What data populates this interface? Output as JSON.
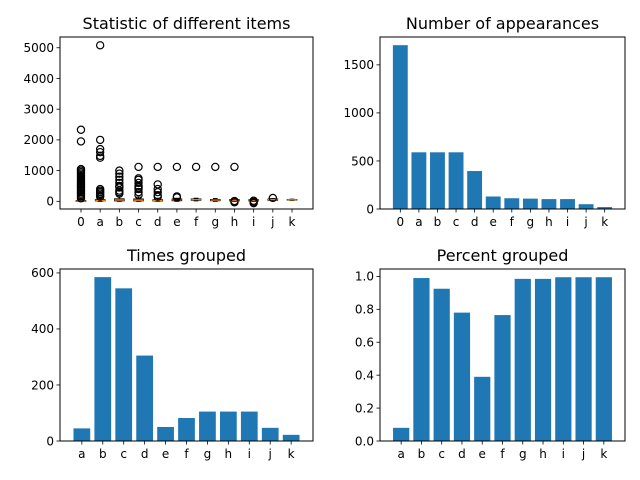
{
  "chart_data": [
    {
      "type": "box",
      "title": "Statistic of different items",
      "categories": [
        "0",
        "a",
        "b",
        "c",
        "d",
        "e",
        "f",
        "g",
        "h",
        "i",
        "j",
        "k"
      ],
      "ylim": [
        -250,
        5350
      ],
      "yticks": [
        0,
        1000,
        2000,
        3000,
        4000,
        5000
      ],
      "ytick_labels": [
        "0",
        "1000",
        "2000",
        "3000",
        "4000",
        "5000"
      ],
      "box_color": "#000000",
      "median_color": "#ff7f0e",
      "boxes": [
        {
          "q1": 0,
          "median": 10,
          "q3": 25,
          "whisker_low": 0,
          "whisker_high": 60,
          "fliers": [
            100,
            150,
            200,
            250,
            300,
            350,
            400,
            450,
            500,
            550,
            600,
            650,
            700,
            750,
            800,
            850,
            900,
            950,
            1000,
            1050,
            1950,
            2330
          ]
        },
        {
          "q1": 15,
          "median": 30,
          "q3": 55,
          "whisker_low": 0,
          "whisker_high": 110,
          "fliers": [
            150,
            200,
            250,
            300,
            350,
            400,
            1420,
            1480,
            1600,
            1700,
            2000,
            5080
          ]
        },
        {
          "q1": 15,
          "median": 40,
          "q3": 80,
          "whisker_low": 0,
          "whisker_high": 150,
          "fliers": [
            250,
            300,
            350,
            450,
            500,
            600,
            700,
            800,
            900,
            1000
          ]
        },
        {
          "q1": 15,
          "median": 35,
          "q3": 75,
          "whisker_low": 0,
          "whisker_high": 140,
          "fliers": [
            200,
            300,
            400,
            450,
            500,
            600,
            700,
            750,
            1120
          ]
        },
        {
          "q1": 10,
          "median": 25,
          "q3": 50,
          "whisker_low": 0,
          "whisker_high": 100,
          "fliers": [
            150,
            200,
            300,
            400,
            550,
            1120
          ]
        },
        {
          "q1": 20,
          "median": 45,
          "q3": 75,
          "whisker_low": 0,
          "whisker_high": 100,
          "fliers": [
            130,
            160,
            1120
          ]
        },
        {
          "q1": 35,
          "median": 55,
          "q3": 75,
          "whisker_low": 15,
          "whisker_high": 100,
          "fliers": [
            1120
          ]
        },
        {
          "q1": 20,
          "median": 40,
          "q3": 60,
          "whisker_low": 0,
          "whisker_high": 90,
          "fliers": [
            1120
          ]
        },
        {
          "q1": 15,
          "median": 35,
          "q3": 55,
          "whisker_low": 0,
          "whisker_high": 80,
          "fliers": [
            -30,
            10,
            1120
          ]
        },
        {
          "q1": 15,
          "median": 30,
          "q3": 50,
          "whisker_low": 0,
          "whisker_high": 70,
          "fliers": [
            -60,
            -20,
            20
          ]
        },
        {
          "q1": 35,
          "median": 55,
          "q3": 75,
          "whisker_low": 20,
          "whisker_high": 90,
          "fliers": [
            110
          ]
        },
        {
          "q1": 40,
          "median": 50,
          "q3": 60,
          "whisker_low": 30,
          "whisker_high": 70,
          "fliers": []
        }
      ]
    },
    {
      "type": "bar",
      "title": "Number of appearances",
      "categories": [
        "0",
        "a",
        "b",
        "c",
        "d",
        "e",
        "f",
        "g",
        "h",
        "i",
        "j",
        "k"
      ],
      "values": [
        1705,
        590,
        590,
        590,
        395,
        130,
        112,
        108,
        103,
        103,
        50,
        20
      ],
      "ylim": [
        0,
        1790
      ],
      "yticks": [
        0,
        500,
        1000,
        1500
      ],
      "ytick_labels": [
        "0",
        "500",
        "1000",
        "1500"
      ],
      "color": "#1f77b4"
    },
    {
      "type": "bar",
      "title": "Times grouped",
      "categories": [
        "a",
        "b",
        "c",
        "d",
        "e",
        "f",
        "g",
        "h",
        "i",
        "j",
        "k"
      ],
      "values": [
        45,
        585,
        545,
        305,
        50,
        82,
        105,
        105,
        105,
        47,
        22
      ],
      "ylim": [
        0,
        614
      ],
      "yticks": [
        0,
        200,
        400,
        600
      ],
      "ytick_labels": [
        "0",
        "200",
        "400",
        "600"
      ],
      "color": "#1f77b4"
    },
    {
      "type": "bar",
      "title": "Percent grouped",
      "categories": [
        "a",
        "b",
        "c",
        "d",
        "e",
        "f",
        "g",
        "h",
        "i",
        "j",
        "k"
      ],
      "values": [
        0.08,
        0.99,
        0.925,
        0.78,
        0.39,
        0.765,
        0.985,
        0.985,
        0.995,
        0.995,
        0.995
      ],
      "ylim": [
        0,
        1.045
      ],
      "yticks": [
        0,
        0.2,
        0.4,
        0.6,
        0.8,
        1.0
      ],
      "ytick_labels": [
        "0.0",
        "0.2",
        "0.4",
        "0.6",
        "0.8",
        "1.0"
      ],
      "color": "#1f77b4"
    }
  ]
}
